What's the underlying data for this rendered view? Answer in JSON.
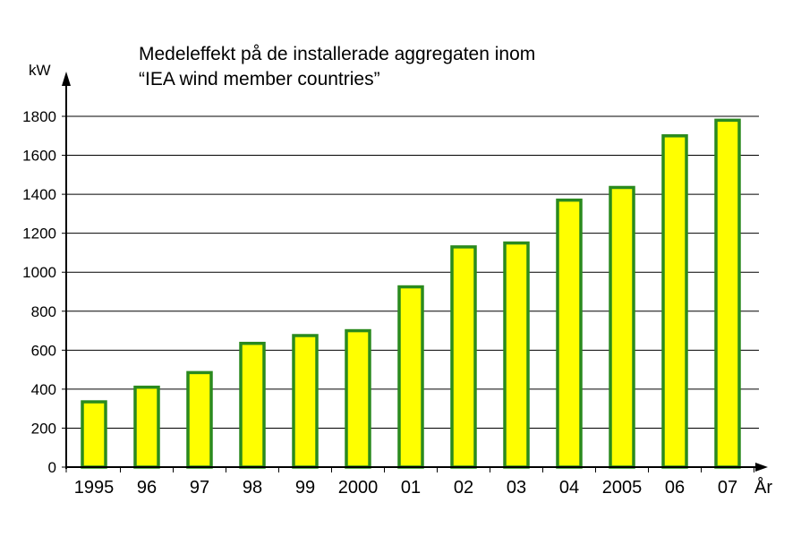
{
  "chart_data": {
    "type": "bar",
    "title_lines": [
      "Medeleffekt på de installerade aggregaten inom",
      "“IEA wind member countries”"
    ],
    "ylabel": "kW",
    "xlabel": "År",
    "ylim": [
      0,
      1800
    ],
    "yticks": [
      "0",
      "200",
      "400",
      "600",
      "800",
      "1000",
      "1200",
      "1400",
      "1600",
      "1800"
    ],
    "categories": [
      "1995",
      "96",
      "97",
      "98",
      "99",
      "2000",
      "01",
      "02",
      "03",
      "04",
      "2005",
      "06",
      "07"
    ],
    "values": [
      335,
      410,
      485,
      635,
      675,
      700,
      925,
      1130,
      1150,
      1370,
      1435,
      1700,
      1780
    ],
    "grid": true,
    "legend": "none",
    "colors": {
      "bar_fill": "#ffff00",
      "bar_stroke": "#2a8a1e",
      "axis": "#000000",
      "grid": "#000000"
    }
  }
}
